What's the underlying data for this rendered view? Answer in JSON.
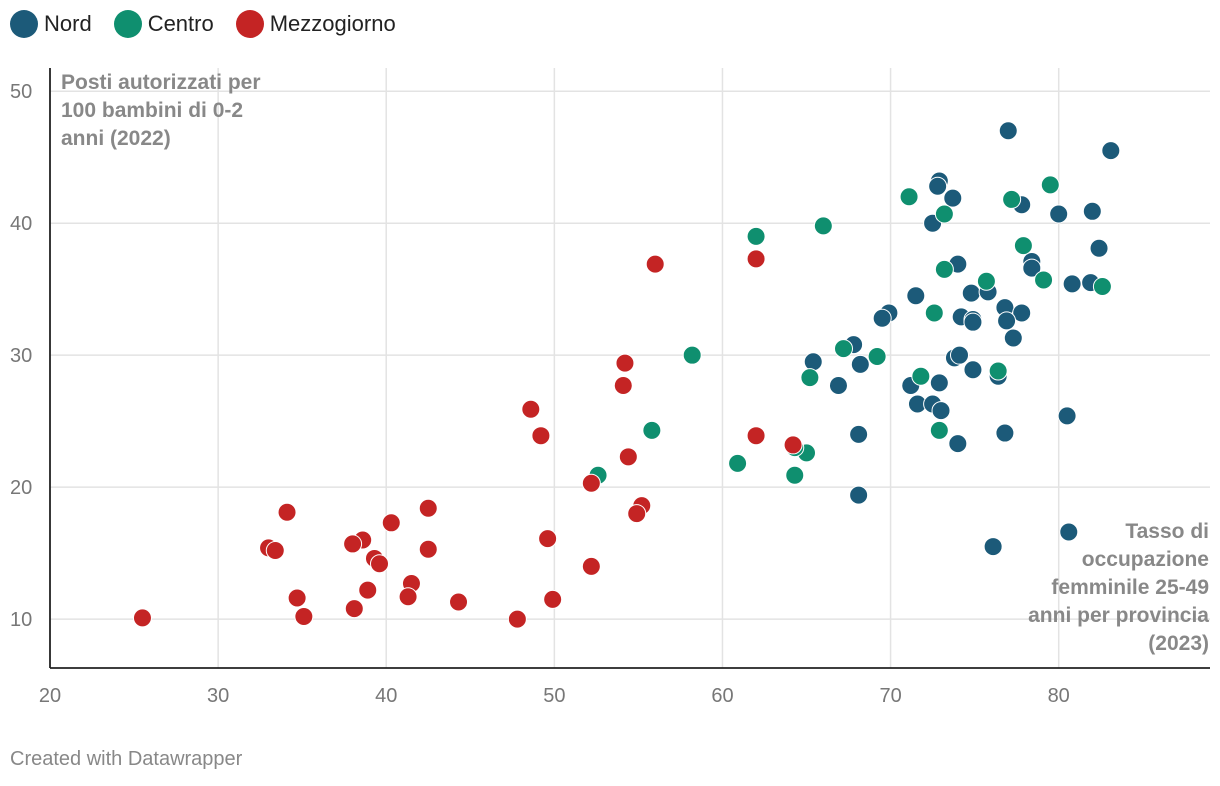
{
  "legend": [
    {
      "label": "Nord",
      "color": "#1c5a79"
    },
    {
      "label": "Centro",
      "color": "#0f8f6f"
    },
    {
      "label": "Mezzogiorno",
      "color": "#c42424"
    }
  ],
  "footer": "Created with Datawrapper",
  "chart_data": {
    "type": "scatter",
    "xlim": [
      20,
      89
    ],
    "ylim": [
      6.3,
      51
    ],
    "x_ticks": [
      20,
      30,
      40,
      50,
      60,
      70,
      80
    ],
    "y_ticks": [
      10,
      20,
      30,
      40,
      50
    ],
    "grid": true,
    "legend_position": "top-left",
    "ylabel_lines": [
      "Posti autorizzati per",
      "100 bambini di 0-2",
      "anni (2022)"
    ],
    "xlabel_lines": [
      "Tasso di",
      "occupazione",
      "femminile 25-49",
      "anni per provincia",
      "(2023)"
    ],
    "series": [
      {
        "name": "Nord",
        "color": "#1c5a79",
        "points": [
          [
            77.0,
            47.0
          ],
          [
            83.1,
            45.5
          ],
          [
            72.9,
            43.2
          ],
          [
            72.8,
            42.8
          ],
          [
            73.7,
            41.9
          ],
          [
            77.8,
            41.4
          ],
          [
            80.0,
            40.7
          ],
          [
            82.0,
            40.9
          ],
          [
            72.5,
            40.0
          ],
          [
            82.4,
            38.1
          ],
          [
            78.4,
            37.1
          ],
          [
            78.4,
            36.6
          ],
          [
            74.0,
            36.9
          ],
          [
            80.8,
            35.4
          ],
          [
            81.9,
            35.5
          ],
          [
            74.8,
            34.7
          ],
          [
            75.8,
            34.8
          ],
          [
            71.5,
            34.5
          ],
          [
            76.8,
            33.6
          ],
          [
            77.8,
            33.2
          ],
          [
            74.2,
            32.9
          ],
          [
            74.9,
            32.7
          ],
          [
            74.9,
            32.5
          ],
          [
            76.9,
            32.6
          ],
          [
            69.9,
            33.2
          ],
          [
            69.5,
            32.8
          ],
          [
            77.3,
            31.3
          ],
          [
            67.8,
            30.8
          ],
          [
            73.8,
            29.8
          ],
          [
            74.1,
            30.0
          ],
          [
            65.4,
            29.5
          ],
          [
            68.2,
            29.3
          ],
          [
            74.9,
            28.9
          ],
          [
            76.4,
            28.4
          ],
          [
            66.9,
            27.7
          ],
          [
            71.2,
            27.7
          ],
          [
            72.9,
            27.9
          ],
          [
            71.6,
            26.3
          ],
          [
            72.5,
            26.3
          ],
          [
            73.0,
            25.8
          ],
          [
            80.5,
            25.4
          ],
          [
            68.1,
            24.0
          ],
          [
            76.8,
            24.1
          ],
          [
            74.0,
            23.3
          ],
          [
            68.1,
            19.4
          ],
          [
            80.6,
            16.6
          ],
          [
            76.1,
            15.5
          ]
        ]
      },
      {
        "name": "Centro",
        "color": "#0f8f6f",
        "points": [
          [
            79.5,
            42.9
          ],
          [
            71.1,
            42.0
          ],
          [
            77.2,
            41.8
          ],
          [
            73.2,
            40.7
          ],
          [
            66.0,
            39.8
          ],
          [
            62.0,
            39.0
          ],
          [
            77.9,
            38.3
          ],
          [
            73.2,
            36.5
          ],
          [
            75.7,
            35.6
          ],
          [
            79.1,
            35.7
          ],
          [
            82.6,
            35.2
          ],
          [
            72.6,
            33.2
          ],
          [
            67.2,
            30.5
          ],
          [
            69.2,
            29.9
          ],
          [
            58.2,
            30.0
          ],
          [
            76.4,
            28.8
          ],
          [
            65.2,
            28.3
          ],
          [
            71.8,
            28.4
          ],
          [
            55.8,
            24.3
          ],
          [
            72.9,
            24.3
          ],
          [
            65.0,
            22.6
          ],
          [
            64.3,
            23.0
          ],
          [
            60.9,
            21.8
          ],
          [
            64.3,
            20.9
          ],
          [
            52.6,
            20.9
          ]
        ]
      },
      {
        "name": "Mezzogiorno",
        "color": "#c42424",
        "points": [
          [
            56.0,
            36.9
          ],
          [
            62.0,
            37.3
          ],
          [
            54.2,
            29.4
          ],
          [
            54.1,
            27.7
          ],
          [
            48.6,
            25.9
          ],
          [
            49.2,
            23.9
          ],
          [
            62.0,
            23.9
          ],
          [
            64.2,
            23.2
          ],
          [
            54.4,
            22.3
          ],
          [
            52.2,
            20.3
          ],
          [
            55.2,
            18.6
          ],
          [
            54.9,
            18.0
          ],
          [
            34.1,
            18.1
          ],
          [
            42.5,
            18.4
          ],
          [
            40.3,
            17.3
          ],
          [
            38.6,
            16.0
          ],
          [
            38.0,
            15.7
          ],
          [
            49.6,
            16.1
          ],
          [
            33.0,
            15.4
          ],
          [
            33.4,
            15.2
          ],
          [
            42.5,
            15.3
          ],
          [
            39.3,
            14.6
          ],
          [
            39.6,
            14.2
          ],
          [
            52.2,
            14.0
          ],
          [
            41.5,
            12.7
          ],
          [
            38.9,
            12.2
          ],
          [
            41.3,
            11.7
          ],
          [
            34.7,
            11.6
          ],
          [
            44.3,
            11.3
          ],
          [
            49.9,
            11.5
          ],
          [
            38.1,
            10.8
          ],
          [
            35.1,
            10.2
          ],
          [
            25.5,
            10.1
          ],
          [
            47.8,
            10.0
          ]
        ]
      }
    ]
  }
}
